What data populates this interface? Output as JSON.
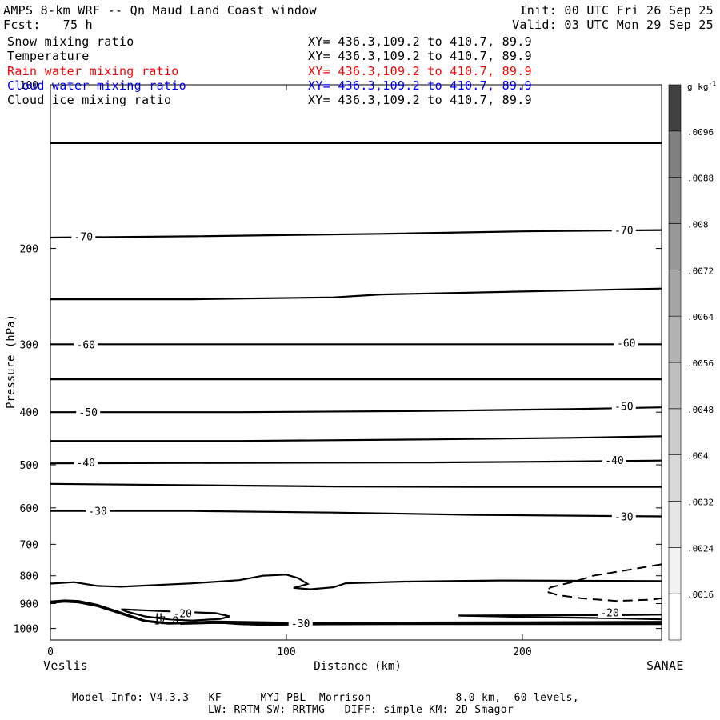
{
  "header": {
    "title": "AMPS 8-km WRF -- Qn Maud Land Coast window",
    "forecast": "Fcst:   75 h",
    "init": "Init: 00 UTC Fri 26 Sep 25",
    "valid": "Valid: 03 UTC Mon 29 Sep 25"
  },
  "fields": [
    {
      "name": "Snow mixing ratio",
      "xy": "XY= 436.3,109.2 to 410.7, 89.9",
      "color": "#000000"
    },
    {
      "name": "Temperature",
      "xy": "XY= 436.3,109.2 to 410.7, 89.9",
      "color": "#000000"
    },
    {
      "name": "Rain water mixing ratio",
      "xy": "XY= 436.3,109.2 to 410.7, 89.9",
      "color": "#ff0000"
    },
    {
      "name": "Cloud water mixing ratio",
      "xy": "XY= 436.3,109.2 to 410.7, 89.9",
      "color": "#0000ff"
    },
    {
      "name": "Cloud ice mixing ratio",
      "xy": "XY= 436.3,109.2 to 410.7, 89.9",
      "color": "#000000"
    }
  ],
  "footer": {
    "left_endpoint": "Veslis",
    "right_endpoint": "SANAE",
    "model_line1": "Model Info: V4.3.3   KF      MYJ PBL  Morrison             8.0 km,  60 levels,",
    "model_line2": "LW: RRTM SW: RRTMG   DIFF: simple KM: 2D Smagor"
  },
  "chart_data": {
    "type": "contour",
    "xlabel": "Distance (km)",
    "ylabel": "Pressure (hPa)",
    "xlim": [
      0,
      259
    ],
    "ylim": [
      1050,
      100
    ],
    "y_scale": "log",
    "x_ticks": [
      0,
      100,
      200
    ],
    "y_ticks": [
      100,
      200,
      300,
      400,
      500,
      600,
      700,
      800,
      900,
      1000
    ],
    "colorbar": {
      "unit": "g kg",
      "unit_exponent": "-1",
      "levels": [
        ".0016",
        ".0024",
        ".0032",
        ".004",
        ".0048",
        ".0056",
        ".0064",
        ".0072",
        ".008",
        ".0088",
        ".0096"
      ],
      "colors": [
        "#ffffff",
        "#f2f2f2",
        "#e6e6e6",
        "#d9d9d9",
        "#cccccc",
        "#bfbfbf",
        "#b3b3b3",
        "#a6a6a6",
        "#999999",
        "#8c8c8c",
        "#808080",
        "#404040"
      ]
    },
    "isotherm_labels": [
      {
        "text": "-70",
        "x": 14,
        "p": 190
      },
      {
        "text": "-70",
        "x": 243,
        "p": 185
      },
      {
        "text": "-60",
        "x": 15,
        "p": 300
      },
      {
        "text": "-60",
        "x": 244,
        "p": 298
      },
      {
        "text": "-50",
        "x": 16,
        "p": 400
      },
      {
        "text": "-50",
        "x": 243,
        "p": 390
      },
      {
        "text": "-40",
        "x": 15,
        "p": 495
      },
      {
        "text": "-40",
        "x": 239,
        "p": 490
      },
      {
        "text": "-30",
        "x": 20,
        "p": 608
      },
      {
        "text": "-30",
        "x": 243,
        "p": 622
      },
      {
        "text": "-20",
        "x": 56,
        "p": 938
      },
      {
        "text": "-20",
        "x": 237,
        "p": 934
      },
      {
        "text": "-30",
        "x": 106,
        "p": 978
      }
    ],
    "extrema": [
      {
        "text": "H",
        "x": 46,
        "p": 953
      },
      {
        "text": "17.8",
        "x": 49,
        "p": 967
      }
    ],
    "isotherms": [
      {
        "p": [
          [
            0,
            128
          ],
          [
            100,
            128
          ],
          [
            200,
            128
          ],
          [
            259,
            128
          ]
        ]
      },
      {
        "p": [
          [
            0,
            191
          ],
          [
            60,
            190
          ],
          [
            140,
            188
          ],
          [
            200,
            186
          ],
          [
            259,
            185
          ]
        ]
      },
      {
        "p": [
          [
            0,
            248
          ],
          [
            60,
            248
          ],
          [
            120,
            246
          ],
          [
            140,
            243
          ],
          [
            200,
            240
          ],
          [
            259,
            237
          ]
        ]
      },
      {
        "p": [
          [
            0,
            300
          ],
          [
            100,
            300
          ],
          [
            200,
            300
          ],
          [
            259,
            300
          ]
        ]
      },
      {
        "p": [
          [
            0,
            348
          ],
          [
            100,
            348
          ],
          [
            200,
            348
          ],
          [
            259,
            348
          ]
        ]
      },
      {
        "p": [
          [
            0,
            400
          ],
          [
            80,
            400
          ],
          [
            160,
            398
          ],
          [
            220,
            395
          ],
          [
            259,
            392
          ]
        ]
      },
      {
        "p": [
          [
            0,
            452
          ],
          [
            80,
            452
          ],
          [
            160,
            449
          ],
          [
            220,
            446
          ],
          [
            259,
            443
          ]
        ]
      },
      {
        "p": [
          [
            0,
            497
          ],
          [
            80,
            496
          ],
          [
            160,
            495
          ],
          [
            220,
            493
          ],
          [
            259,
            491
          ]
        ]
      },
      {
        "p": [
          [
            0,
            542
          ],
          [
            60,
            545
          ],
          [
            120,
            548
          ],
          [
            180,
            549
          ],
          [
            259,
            549
          ]
        ]
      },
      {
        "p": [
          [
            0,
            608
          ],
          [
            60,
            608
          ],
          [
            120,
            612
          ],
          [
            180,
            618
          ],
          [
            259,
            622
          ]
        ]
      },
      {
        "p": [
          [
            0,
            827
          ],
          [
            10,
            822
          ],
          [
            20,
            835
          ],
          [
            30,
            838
          ],
          [
            60,
            826
          ],
          [
            80,
            815
          ],
          [
            90,
            800
          ],
          [
            100,
            796
          ],
          [
            105,
            808
          ],
          [
            109,
            828
          ],
          [
            105,
            838
          ],
          [
            103,
            842
          ],
          [
            110,
            847
          ],
          [
            120,
            840
          ],
          [
            125,
            826
          ],
          [
            150,
            820
          ],
          [
            190,
            816
          ],
          [
            259,
            818
          ]
        ]
      },
      {
        "p": [
          [
            0,
            892
          ],
          [
            6,
            888
          ],
          [
            12,
            890
          ],
          [
            20,
            905
          ],
          [
            30,
            935
          ],
          [
            40,
            967
          ],
          [
            50,
            977
          ],
          [
            60,
            978
          ],
          [
            70,
            975
          ],
          [
            80,
            982
          ],
          [
            90,
            985
          ],
          [
            110,
            982
          ],
          [
            140,
            980
          ],
          [
            200,
            978
          ],
          [
            259,
            976
          ]
        ]
      },
      {
        "p": [
          [
            0,
            898
          ],
          [
            6,
            893
          ],
          [
            12,
            896
          ],
          [
            20,
            910
          ],
          [
            30,
            940
          ],
          [
            40,
            970
          ],
          [
            50,
            980
          ],
          [
            70,
            976
          ],
          [
            90,
            984
          ],
          [
            130,
            982
          ],
          [
            259,
            982
          ]
        ]
      },
      {
        "p": [
          [
            30,
            922
          ],
          [
            50,
            930
          ],
          [
            70,
            937
          ],
          [
            76,
            950
          ],
          [
            72,
            960
          ],
          [
            60,
            967
          ],
          [
            50,
            962
          ],
          [
            40,
            950
          ],
          [
            32,
            930
          ],
          [
            30,
            922
          ]
        ]
      },
      {
        "p": [
          [
            173,
            947
          ],
          [
            200,
            946
          ],
          [
            240,
            945
          ],
          [
            259,
            943
          ]
        ]
      },
      {
        "p": [
          [
            173,
            947
          ],
          [
            200,
            952
          ],
          [
            240,
            958
          ],
          [
            259,
            962
          ]
        ]
      }
    ],
    "dashed_contours": [
      {
        "p": [
          [
            259,
            762
          ],
          [
            245,
            780
          ],
          [
            230,
            800
          ],
          [
            222,
            820
          ],
          [
            212,
            840
          ],
          [
            210,
            855
          ],
          [
            215,
            868
          ],
          [
            225,
            880
          ],
          [
            240,
            890
          ],
          [
            255,
            885
          ],
          [
            259,
            880
          ]
        ]
      }
    ],
    "thick_contours": [
      {
        "p": [
          [
            55,
            978
          ],
          [
            70,
            974
          ],
          [
            110,
            980
          ],
          [
            150,
            978
          ],
          [
            200,
            977
          ],
          [
            259,
            975
          ]
        ]
      }
    ]
  }
}
